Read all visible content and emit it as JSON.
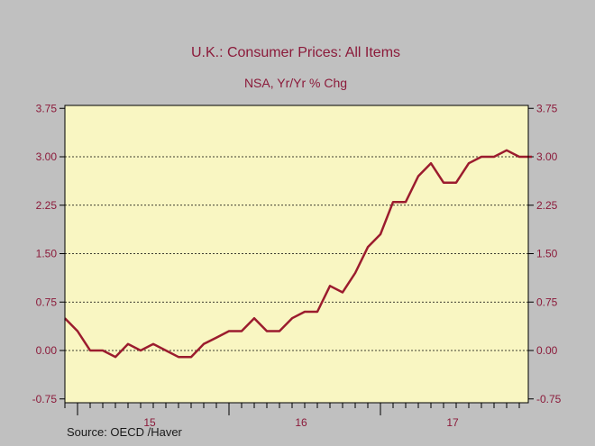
{
  "chart_data": {
    "type": "line",
    "title": "U.K.: Consumer Prices: All Items",
    "subtitle": "NSA, Yr/Yr % Chg",
    "source": "Source:  OECD /Haver",
    "ylim": [
      -0.85,
      3.9
    ],
    "yticks": [
      "3.75",
      "3.00",
      "2.25",
      "1.50",
      "0.75",
      "0.00",
      "-0.75"
    ],
    "ytick_values": [
      3.75,
      3.0,
      2.25,
      1.5,
      0.75,
      0.0,
      -0.75
    ],
    "xtick_labels": [
      "15",
      "16",
      "17"
    ],
    "x_start": "2014-12",
    "series": [
      {
        "color": "#9b1c2e",
        "x": [
          "2014-12",
          "2015-01",
          "2015-02",
          "2015-03",
          "2015-04",
          "2015-05",
          "2015-06",
          "2015-07",
          "2015-08",
          "2015-09",
          "2015-10",
          "2015-11",
          "2015-12",
          "2016-01",
          "2016-02",
          "2016-03",
          "2016-04",
          "2016-05",
          "2016-06",
          "2016-07",
          "2016-08",
          "2016-09",
          "2016-10",
          "2016-11",
          "2016-12",
          "2017-01",
          "2017-02",
          "2017-03",
          "2017-04",
          "2017-05",
          "2017-06",
          "2017-07",
          "2017-08",
          "2017-09",
          "2017-10",
          "2017-11",
          "2017-12",
          "2018-01"
        ],
        "values": [
          0.5,
          0.3,
          0.0,
          0.0,
          -0.1,
          0.1,
          0.0,
          0.1,
          0.0,
          -0.1,
          -0.1,
          0.1,
          0.2,
          0.3,
          0.3,
          0.5,
          0.3,
          0.3,
          0.5,
          0.6,
          0.6,
          1.0,
          0.9,
          1.2,
          1.6,
          1.8,
          2.3,
          2.3,
          2.7,
          2.9,
          2.6,
          2.6,
          2.9,
          3.0,
          3.0,
          3.1,
          3.0,
          3.0
        ]
      }
    ],
    "grid": "dashed horizontal",
    "colors": {
      "plot_bg": "#f9f6c2",
      "page_bg": "#c0c0c0",
      "axis": "#000000",
      "text": "#8b1a3a"
    }
  }
}
